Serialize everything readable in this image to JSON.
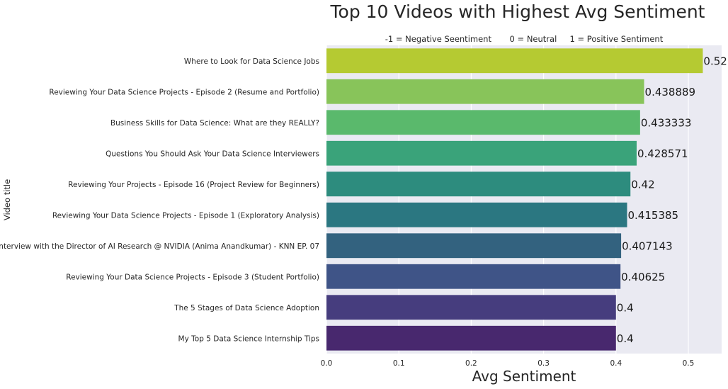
{
  "chart_data": {
    "type": "bar",
    "orientation": "horizontal",
    "title": "Top 10 Videos with Highest Avg Sentiment",
    "subtitle": "-1 = Negative Seentiment       0 = Neutral     1 = Positive Sentiment",
    "xlabel": "Avg Sentiment",
    "ylabel": "Video title",
    "xlim": [
      0,
      0.546
    ],
    "xticks": [
      0.0,
      0.1,
      0.2,
      0.3,
      0.4,
      0.5
    ],
    "xtick_labels": [
      "0.0",
      "0.1",
      "0.2",
      "0.3",
      "0.4",
      "0.5"
    ],
    "grid": true,
    "categories": [
      "Where to Look for Data Science Jobs",
      "Reviewing Your Data Science Projects - Episode 2 (Resume and Portfolio)",
      "Business Skills for Data Science: What are they REALLY?",
      "Questions You Should Ask Your Data Science Interviewers",
      "Reviewing Your Projects - Episode 16 (Project Review for Beginners)",
      "Reviewing Your Data Science Projects - Episode 1 (Exploratory Analysis)",
      "Interview with the Director of AI Research @ NVIDIA (Anima Anandkumar) - KNN EP. 07",
      "Reviewing Your Data Science Projects - Episode 3 (Student Portfolio)",
      "The 5 Stages of Data Science Adoption",
      "My Top 5 Data Science Internship Tips"
    ],
    "values": [
      0.52,
      0.438889,
      0.433333,
      0.428571,
      0.42,
      0.415385,
      0.407143,
      0.40625,
      0.4,
      0.4
    ],
    "value_labels": [
      "0.52",
      "0.438889",
      "0.433333",
      "0.428571",
      "0.42",
      "0.415385",
      "0.407143",
      "0.40625",
      "0.4",
      "0.4"
    ],
    "colors": [
      "#b5ca32",
      "#88c45a",
      "#5ab96c",
      "#3aa37a",
      "#2d8c7e",
      "#2b7781",
      "#33627f",
      "#3f5487",
      "#463d7e",
      "#48286e"
    ],
    "colormap": "viridis"
  }
}
